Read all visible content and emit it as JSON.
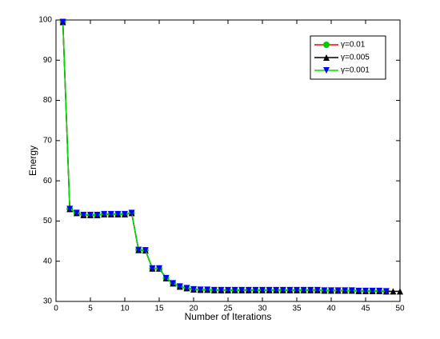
{
  "chart_data": {
    "type": "line",
    "xlabel": "Number of Iterations",
    "ylabel": "Energy",
    "x": [
      1,
      2,
      3,
      4,
      5,
      6,
      7,
      8,
      9,
      10,
      11,
      12,
      13,
      14,
      15,
      16,
      17,
      18,
      19,
      20,
      21,
      22,
      23,
      24,
      25,
      26,
      27,
      28,
      29,
      30,
      31,
      32,
      33,
      34,
      35,
      36,
      37,
      38,
      39,
      40,
      41,
      42,
      43,
      44,
      45,
      46,
      47,
      48,
      49,
      50
    ],
    "series": [
      {
        "name": "γ=0.01",
        "color": "#ff0000",
        "marker": "circle",
        "marker_color": "#00cc00",
        "values": [
          99.5,
          53,
          52,
          51.5,
          51.5,
          51.5,
          51.7,
          51.7,
          51.7,
          51.7,
          52,
          42.8,
          42.7,
          38.2,
          38.2,
          35.8,
          34.5,
          33.7,
          33.3,
          33,
          32.9,
          32.9,
          32.8,
          32.8,
          32.8,
          32.8,
          32.8,
          32.8,
          32.8,
          32.8,
          32.8,
          32.8,
          32.8,
          32.8,
          32.8,
          32.8,
          32.8,
          32.8,
          32.7,
          32.7,
          32.7,
          32.7,
          32.7,
          32.6,
          32.6,
          32.6,
          32.6,
          32.5,
          null,
          null
        ]
      },
      {
        "name": "γ=0.005",
        "color": "#000000",
        "marker": "triangle-up",
        "marker_color": "#000000",
        "values": [
          99.5,
          53,
          52,
          51.5,
          51.5,
          51.5,
          51.7,
          51.7,
          51.7,
          51.7,
          52,
          42.8,
          42.7,
          38.2,
          38.2,
          35.8,
          34.5,
          33.7,
          33.3,
          33,
          32.9,
          32.9,
          32.8,
          32.8,
          32.8,
          32.8,
          32.8,
          32.8,
          32.8,
          32.8,
          32.8,
          32.8,
          32.8,
          32.8,
          32.8,
          32.8,
          32.8,
          32.8,
          32.7,
          32.7,
          32.7,
          32.7,
          32.7,
          32.6,
          32.6,
          32.6,
          32.6,
          32.5,
          32.5,
          32.5
        ]
      },
      {
        "name": "γ=0.001",
        "color": "#00dd00",
        "marker": "triangle-down",
        "marker_color": "#0000ff",
        "values": [
          99.5,
          53,
          52,
          51.5,
          51.5,
          51.5,
          51.7,
          51.7,
          51.7,
          51.7,
          52,
          42.8,
          42.7,
          38.2,
          38.2,
          35.8,
          34.5,
          33.7,
          33.3,
          33,
          32.9,
          32.9,
          32.8,
          32.8,
          32.8,
          32.8,
          32.8,
          32.8,
          32.8,
          32.8,
          32.8,
          32.8,
          32.8,
          32.8,
          32.8,
          32.8,
          32.8,
          32.8,
          32.7,
          32.7,
          32.7,
          32.7,
          32.7,
          32.6,
          32.6,
          32.6,
          32.6,
          32.5,
          null,
          null
        ]
      }
    ],
    "xlim": [
      0,
      50
    ],
    "xticks": [
      0,
      5,
      10,
      15,
      20,
      25,
      30,
      35,
      40,
      45,
      50
    ],
    "ylim": [
      30,
      100
    ],
    "yticks": [
      30,
      40,
      50,
      60,
      70,
      80,
      90,
      100
    ],
    "grid": false,
    "legend": "northeast"
  }
}
